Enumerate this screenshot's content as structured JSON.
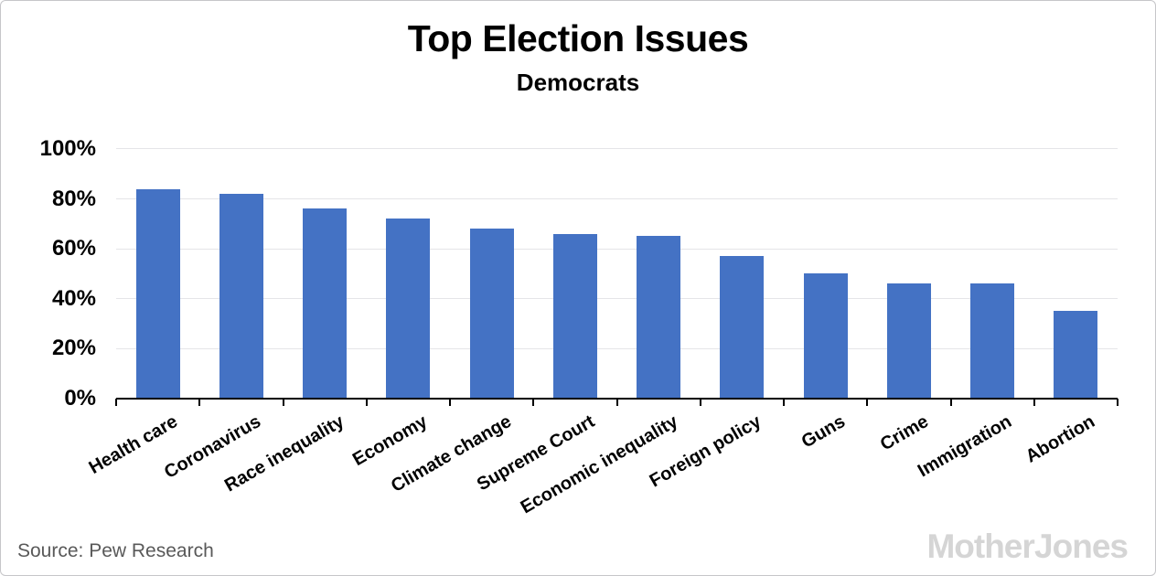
{
  "header": {
    "title": "Top Election Issues",
    "subtitle": "Democrats"
  },
  "footer": {
    "source": "Source: Pew Research",
    "watermark": "Mother Jones"
  },
  "colors": {
    "bar": "#4472C4",
    "gridline": "#e5e5e8",
    "axis": "#000000",
    "source_text": "#595959",
    "watermark_text": "#d5d5d5"
  },
  "chart_data": {
    "type": "bar",
    "title": "Top Election Issues",
    "subtitle": "Democrats",
    "categories": [
      "Health care",
      "Coronavirus",
      "Race inequality",
      "Economy",
      "Climate change",
      "Supreme Court",
      "Economic inequality",
      "Foreign policy",
      "Guns",
      "Crime",
      "Immigration",
      "Abortion"
    ],
    "values": [
      84,
      82,
      76,
      72,
      68,
      66,
      65,
      57,
      50,
      46,
      46,
      35
    ],
    "xlabel": "",
    "ylabel": "",
    "ylim": [
      0,
      100
    ],
    "ytick_step": 20,
    "ytick_labels": [
      "0%",
      "20%",
      "40%",
      "60%",
      "80%",
      "100%"
    ],
    "grid": true,
    "legend": "none",
    "bar_color": "#4472C4"
  }
}
